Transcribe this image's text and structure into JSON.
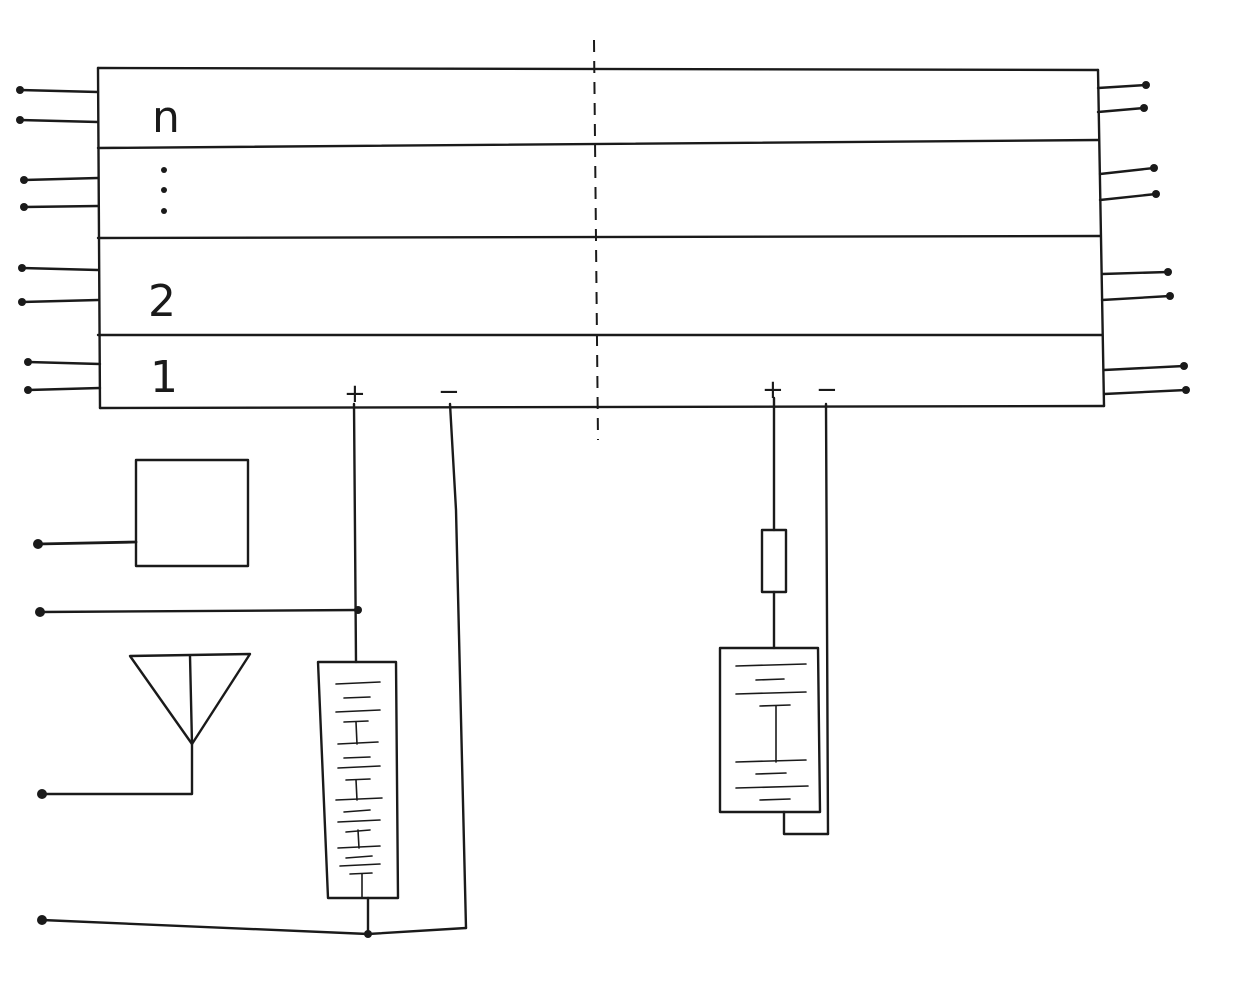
{
  "diagram": {
    "layers": [
      {
        "id": "layer-n",
        "label": "n"
      },
      {
        "id": "layer-dots",
        "label": "⋮"
      },
      {
        "id": "layer-2",
        "label": "2"
      },
      {
        "id": "layer-1",
        "label": "1"
      }
    ],
    "left_terminal": {
      "plus": "+",
      "minus": "−"
    },
    "right_terminal": {
      "plus": "+",
      "minus": "−"
    }
  }
}
